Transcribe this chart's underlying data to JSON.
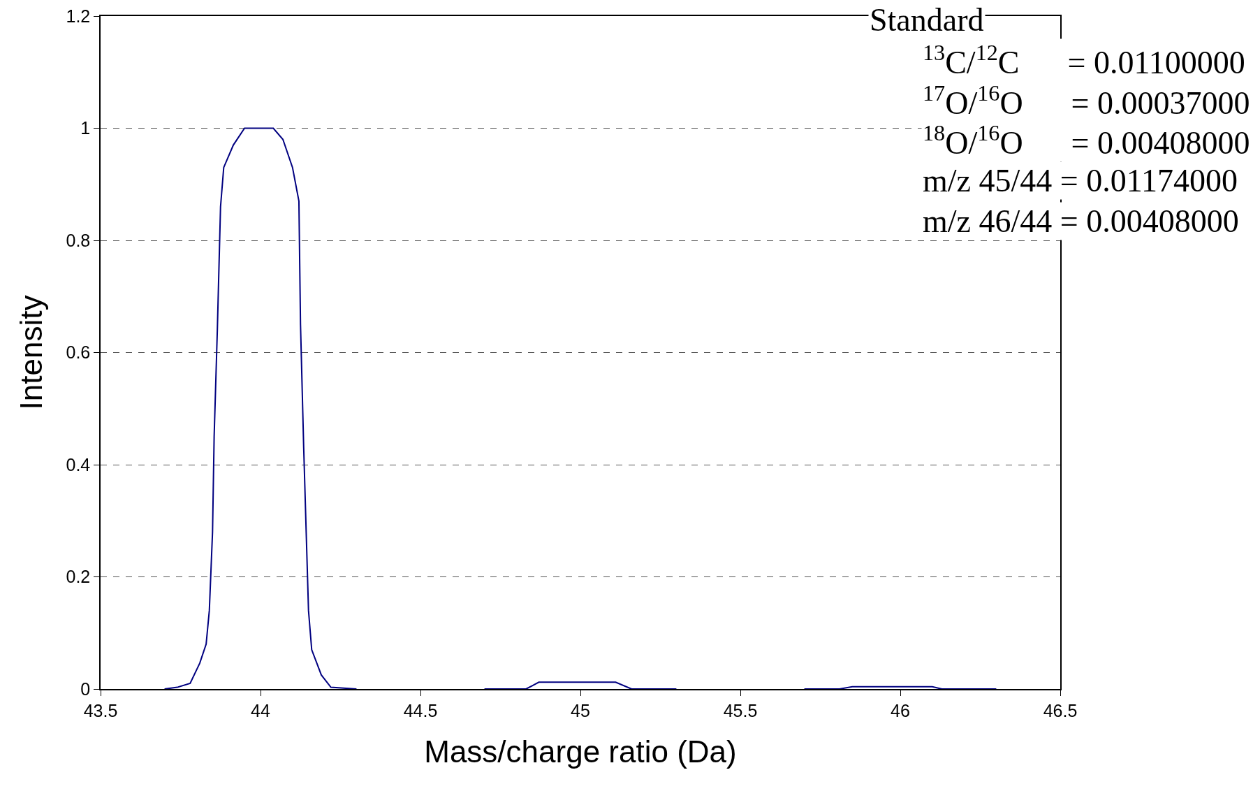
{
  "chart_data": {
    "type": "line",
    "xlabel": "Mass/charge ratio (Da)",
    "ylabel": "Intensity",
    "series": [
      {
        "color": "#000080",
        "x": [
          43.7,
          43.74,
          43.78,
          43.81,
          43.83,
          43.84,
          43.85,
          43.855,
          43.865,
          43.875,
          43.885,
          43.915,
          43.95,
          44.04,
          44.07,
          44.1,
          44.12,
          44.125,
          44.135,
          44.15,
          44.16,
          44.19,
          44.22,
          44.3,
          44.5,
          44.7,
          44.83,
          44.87,
          45.11,
          45.16,
          45.3,
          45.5,
          45.7,
          45.81,
          45.85,
          46.1,
          46.13,
          46.3
        ],
        "values": [
          0,
          0.003,
          0.01,
          0.046,
          0.08,
          0.14,
          0.28,
          0.45,
          0.64,
          0.86,
          0.93,
          0.97,
          1,
          1,
          0.98,
          0.93,
          0.87,
          0.65,
          0.43,
          0.14,
          0.07,
          0.025,
          0.003,
          0,
          null,
          0,
          0,
          0.012,
          0.012,
          0,
          0,
          null,
          0,
          0,
          0.004,
          0.004,
          0,
          0
        ]
      }
    ],
    "xlim": [
      43.5,
      46.5
    ],
    "xticks": [
      43.5,
      44,
      44.5,
      45,
      45.5,
      46,
      46.5
    ],
    "ylim": [
      0,
      1.2
    ],
    "yticks": [
      0,
      0.2,
      0.4,
      0.6,
      0.8,
      1,
      1.2
    ],
    "grid": "y",
    "marker": "none",
    "line_style": "solid",
    "annotations": [
      "Standard",
      "$^{13}$C/$^{12}$C      = 0.01100000",
      "$^{17}$O/$^{16}$O      = 0.00037000",
      "$^{18}$O/$^{16}$O      = 0.00408000",
      "m/z 45/44 = 0.01174000",
      "m/z 46/44 = 0.00408000"
    ]
  }
}
